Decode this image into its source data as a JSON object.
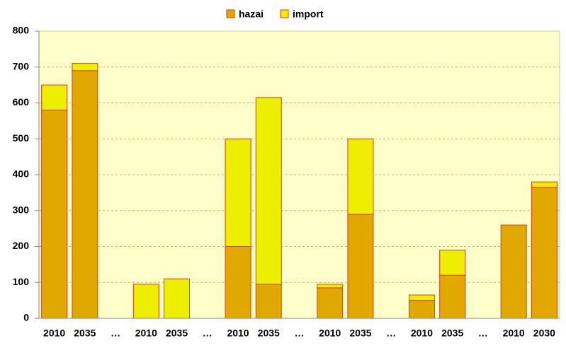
{
  "chart_data": {
    "type": "stacked_bar",
    "categories": [
      "2010",
      "2035",
      "…",
      "2010",
      "2035",
      "…",
      "2010",
      "2035",
      "…",
      "2010",
      "2035",
      "…",
      "2010",
      "2035",
      "…",
      "2010",
      "2030"
    ],
    "series": [
      {
        "name": "hazai",
        "color": "#e0a800",
        "values": [
          580,
          690,
          null,
          0,
          0,
          null,
          200,
          95,
          null,
          85,
          290,
          null,
          50,
          120,
          null,
          260,
          365
        ]
      },
      {
        "name": "import",
        "color": "#eeee00",
        "values": [
          70,
          20,
          null,
          95,
          110,
          null,
          300,
          520,
          null,
          10,
          210,
          null,
          15,
          70,
          null,
          0,
          15
        ]
      }
    ],
    "ylim": [
      0,
      800
    ],
    "yticks": [
      0,
      100,
      200,
      300,
      400,
      500,
      600,
      700,
      800
    ],
    "grid": true,
    "legend": "top"
  }
}
